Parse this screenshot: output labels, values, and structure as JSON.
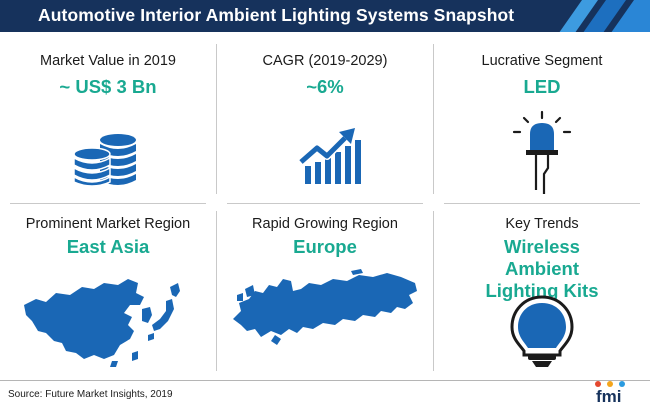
{
  "title": "Automotive Interior Ambient Lighting Systems Snapshot",
  "cells": [
    {
      "label": "Market Value in 2019",
      "value": "~ US$ 3 Bn",
      "icon": "coin-stack-icon"
    },
    {
      "label": "CAGR (2019-2029)",
      "value": "~6%",
      "icon": "growth-chart-icon"
    },
    {
      "label": "Lucrative Segment",
      "value": "LED",
      "icon": "led-icon"
    },
    {
      "label": "Prominent Market Region",
      "value": "East Asia",
      "icon": "east-asia-map-icon"
    },
    {
      "label": "Rapid Growing Region",
      "value": "Europe",
      "icon": "europe-map-icon"
    },
    {
      "label": "Key Trends",
      "value": "Wireless Ambient Lighting Kits",
      "icon": "light-bulb-icon"
    }
  ],
  "footer": {
    "source": "Source: Future Market Insights, 2019",
    "logo_text": "fmi",
    "logo_icon": "fmi-logo-icon"
  },
  "colors": {
    "header": "#16325c",
    "accent": "#19a991",
    "icon_blue": "#1a67b5",
    "text": "#1b1b1b"
  }
}
